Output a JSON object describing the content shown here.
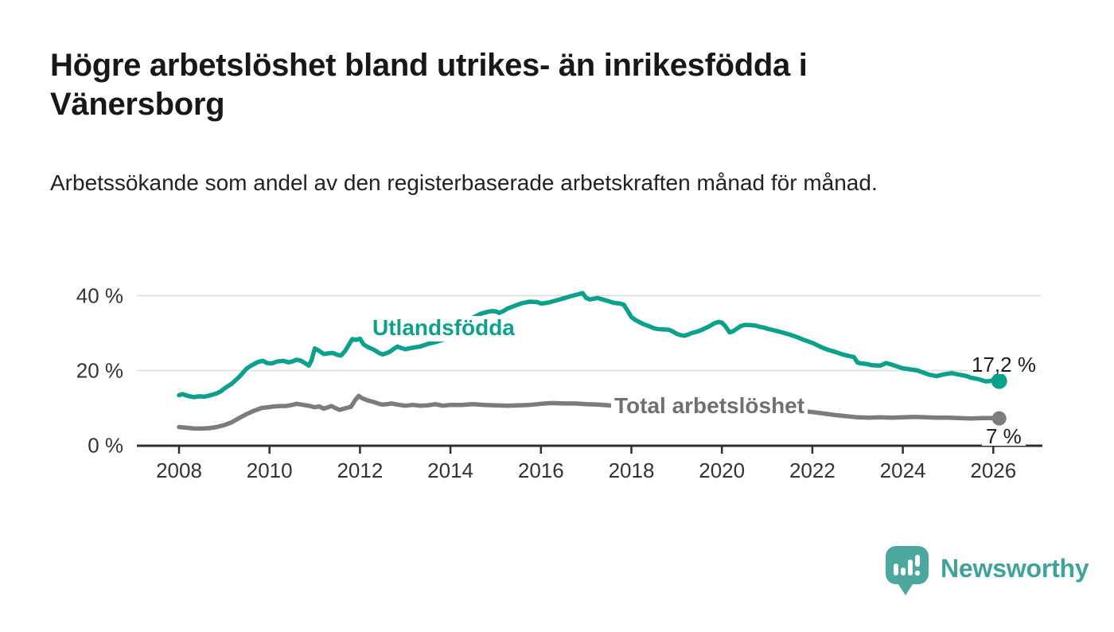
{
  "chart_data": {
    "type": "line",
    "title": "Högre arbetslöshet bland utrikes- än inrikesfödda i Vänersborg",
    "subtitle": "Arbetssökande som andel av den registerbaserade arbetskraften månad för månad.",
    "unit": "%",
    "grid": "horizontal-only",
    "legend_position": "inline-labels-on-chart",
    "x_axis": {
      "ticks": [
        2008,
        2010,
        2012,
        2014,
        2016,
        2018,
        2020,
        2022,
        2024,
        2026
      ],
      "tick_labels": [
        "2008",
        "2010",
        "2012",
        "2014",
        "2016",
        "2018",
        "2020",
        "2022",
        "2024",
        "2026"
      ],
      "range_years": [
        2007.07,
        2027.05
      ]
    },
    "y_axis": {
      "ticks": [
        0,
        20,
        40
      ],
      "tick_labels": [
        "0 %",
        "20 %",
        "40 %"
      ],
      "range": [
        0,
        42
      ]
    },
    "series": [
      {
        "name": "Utlandsfödda",
        "color": "#0DA18D",
        "end_label": "17,2 %",
        "end_value": 17.2,
        "points": [
          [
            2008.0,
            13.4
          ],
          [
            2008.08,
            13.7
          ],
          [
            2008.2,
            13.2
          ],
          [
            2008.33,
            12.9
          ],
          [
            2008.45,
            13.1
          ],
          [
            2008.55,
            13.0
          ],
          [
            2008.67,
            13.3
          ],
          [
            2008.83,
            13.9
          ],
          [
            2008.92,
            14.4
          ],
          [
            2009.0,
            15.2
          ],
          [
            2009.17,
            16.5
          ],
          [
            2009.33,
            18.3
          ],
          [
            2009.42,
            19.5
          ],
          [
            2009.5,
            20.6
          ],
          [
            2009.58,
            21.2
          ],
          [
            2009.67,
            21.8
          ],
          [
            2009.75,
            22.3
          ],
          [
            2009.85,
            22.6
          ],
          [
            2009.95,
            22.0
          ],
          [
            2010.05,
            21.9
          ],
          [
            2010.17,
            22.4
          ],
          [
            2010.3,
            22.6
          ],
          [
            2010.42,
            22.2
          ],
          [
            2010.5,
            22.4
          ],
          [
            2010.6,
            22.9
          ],
          [
            2010.7,
            22.6
          ],
          [
            2010.78,
            22.0
          ],
          [
            2010.87,
            21.3
          ],
          [
            2010.93,
            22.8
          ],
          [
            2011.0,
            25.9
          ],
          [
            2011.08,
            25.4
          ],
          [
            2011.2,
            24.4
          ],
          [
            2011.3,
            24.6
          ],
          [
            2011.4,
            24.7
          ],
          [
            2011.5,
            24.2
          ],
          [
            2011.58,
            24.0
          ],
          [
            2011.67,
            25.2
          ],
          [
            2011.75,
            26.8
          ],
          [
            2011.83,
            28.4
          ],
          [
            2011.92,
            28.2
          ],
          [
            2012.0,
            28.5
          ],
          [
            2012.08,
            27.0
          ],
          [
            2012.17,
            26.3
          ],
          [
            2012.3,
            25.6
          ],
          [
            2012.42,
            24.7
          ],
          [
            2012.5,
            24.3
          ],
          [
            2012.6,
            24.7
          ],
          [
            2012.67,
            25.1
          ],
          [
            2012.75,
            25.8
          ],
          [
            2012.83,
            26.4
          ],
          [
            2012.92,
            26.0
          ],
          [
            2013.0,
            25.7
          ],
          [
            2013.08,
            25.9
          ],
          [
            2013.17,
            26.1
          ],
          [
            2013.33,
            26.4
          ],
          [
            2013.5,
            27.1
          ],
          [
            2013.67,
            27.6
          ],
          [
            2013.83,
            28.2
          ],
          [
            2014.0,
            28.7
          ],
          [
            2014.17,
            30.6
          ],
          [
            2014.33,
            32.6
          ],
          [
            2014.5,
            34.1
          ],
          [
            2014.67,
            35.2
          ],
          [
            2014.83,
            35.7
          ],
          [
            2014.92,
            35.9
          ],
          [
            2015.0,
            35.8
          ],
          [
            2015.08,
            35.4
          ],
          [
            2015.17,
            35.9
          ],
          [
            2015.25,
            36.5
          ],
          [
            2015.42,
            37.3
          ],
          [
            2015.58,
            38.0
          ],
          [
            2015.75,
            38.4
          ],
          [
            2015.92,
            38.3
          ],
          [
            2016.0,
            37.9
          ],
          [
            2016.08,
            38.0
          ],
          [
            2016.17,
            38.2
          ],
          [
            2016.33,
            38.7
          ],
          [
            2016.5,
            39.3
          ],
          [
            2016.67,
            39.9
          ],
          [
            2016.83,
            40.4
          ],
          [
            2016.92,
            40.7
          ],
          [
            2017.0,
            39.4
          ],
          [
            2017.08,
            39.0
          ],
          [
            2017.17,
            39.2
          ],
          [
            2017.25,
            39.4
          ],
          [
            2017.33,
            39.1
          ],
          [
            2017.42,
            38.8
          ],
          [
            2017.5,
            38.5
          ],
          [
            2017.58,
            38.2
          ],
          [
            2017.67,
            38.0
          ],
          [
            2017.75,
            37.9
          ],
          [
            2017.83,
            37.6
          ],
          [
            2017.92,
            35.9
          ],
          [
            2018.0,
            34.3
          ],
          [
            2018.08,
            33.6
          ],
          [
            2018.17,
            33.0
          ],
          [
            2018.25,
            32.5
          ],
          [
            2018.33,
            32.1
          ],
          [
            2018.42,
            31.7
          ],
          [
            2018.5,
            31.3
          ],
          [
            2018.58,
            31.1
          ],
          [
            2018.67,
            31.0
          ],
          [
            2018.83,
            30.9
          ],
          [
            2018.92,
            30.4
          ],
          [
            2019.0,
            29.8
          ],
          [
            2019.08,
            29.5
          ],
          [
            2019.17,
            29.3
          ],
          [
            2019.25,
            29.6
          ],
          [
            2019.33,
            30.0
          ],
          [
            2019.42,
            30.3
          ],
          [
            2019.5,
            30.6
          ],
          [
            2019.58,
            31.0
          ],
          [
            2019.67,
            31.5
          ],
          [
            2019.75,
            32.0
          ],
          [
            2019.83,
            32.6
          ],
          [
            2019.92,
            33.0
          ],
          [
            2020.0,
            32.8
          ],
          [
            2020.08,
            31.8
          ],
          [
            2020.17,
            30.2
          ],
          [
            2020.25,
            30.5
          ],
          [
            2020.33,
            31.2
          ],
          [
            2020.42,
            31.9
          ],
          [
            2020.5,
            32.2
          ],
          [
            2020.58,
            32.2
          ],
          [
            2020.67,
            32.1
          ],
          [
            2020.75,
            32.0
          ],
          [
            2020.83,
            31.7
          ],
          [
            2020.92,
            31.5
          ],
          [
            2021.0,
            31.2
          ],
          [
            2021.17,
            30.7
          ],
          [
            2021.33,
            30.2
          ],
          [
            2021.5,
            29.6
          ],
          [
            2021.67,
            28.9
          ],
          [
            2021.83,
            28.1
          ],
          [
            2022.0,
            27.4
          ],
          [
            2022.17,
            26.4
          ],
          [
            2022.33,
            25.6
          ],
          [
            2022.5,
            25.0
          ],
          [
            2022.67,
            24.3
          ],
          [
            2022.83,
            23.8
          ],
          [
            2022.92,
            23.6
          ],
          [
            2023.0,
            22.1
          ],
          [
            2023.08,
            21.9
          ],
          [
            2023.17,
            21.8
          ],
          [
            2023.33,
            21.4
          ],
          [
            2023.5,
            21.3
          ],
          [
            2023.63,
            22.0
          ],
          [
            2023.75,
            21.6
          ],
          [
            2023.92,
            20.9
          ],
          [
            2024.0,
            20.6
          ],
          [
            2024.17,
            20.3
          ],
          [
            2024.33,
            20.0
          ],
          [
            2024.42,
            19.6
          ],
          [
            2024.58,
            18.9
          ],
          [
            2024.75,
            18.5
          ],
          [
            2024.92,
            19.0
          ],
          [
            2025.08,
            19.3
          ],
          [
            2025.25,
            18.9
          ],
          [
            2025.42,
            18.5
          ],
          [
            2025.5,
            18.1
          ],
          [
            2025.67,
            17.7
          ],
          [
            2025.75,
            17.4
          ],
          [
            2025.83,
            17.1
          ],
          [
            2025.92,
            17.2
          ],
          [
            2026.0,
            17.4
          ],
          [
            2026.13,
            17.2
          ]
        ]
      },
      {
        "name": "Total arbetslöshet",
        "color": "#7C7C7C",
        "end_label": "7 %",
        "end_value": 7,
        "points": [
          [
            2008.0,
            4.9
          ],
          [
            2008.17,
            4.7
          ],
          [
            2008.33,
            4.5
          ],
          [
            2008.5,
            4.5
          ],
          [
            2008.67,
            4.6
          ],
          [
            2008.83,
            4.9
          ],
          [
            2009.0,
            5.4
          ],
          [
            2009.17,
            6.2
          ],
          [
            2009.33,
            7.3
          ],
          [
            2009.5,
            8.4
          ],
          [
            2009.67,
            9.3
          ],
          [
            2009.83,
            10.0
          ],
          [
            2009.97,
            10.2
          ],
          [
            2010.1,
            10.4
          ],
          [
            2010.25,
            10.5
          ],
          [
            2010.37,
            10.5
          ],
          [
            2010.5,
            10.8
          ],
          [
            2010.6,
            11.1
          ],
          [
            2010.75,
            10.8
          ],
          [
            2010.9,
            10.5
          ],
          [
            2011.0,
            10.2
          ],
          [
            2011.1,
            10.4
          ],
          [
            2011.2,
            9.8
          ],
          [
            2011.3,
            10.2
          ],
          [
            2011.37,
            10.5
          ],
          [
            2011.45,
            10.0
          ],
          [
            2011.55,
            9.5
          ],
          [
            2011.65,
            9.8
          ],
          [
            2011.8,
            10.3
          ],
          [
            2011.9,
            12.2
          ],
          [
            2011.97,
            13.2
          ],
          [
            2012.05,
            12.6
          ],
          [
            2012.17,
            12.0
          ],
          [
            2012.3,
            11.6
          ],
          [
            2012.42,
            11.1
          ],
          [
            2012.5,
            10.9
          ],
          [
            2012.6,
            11.0
          ],
          [
            2012.7,
            11.2
          ],
          [
            2012.83,
            10.9
          ],
          [
            2013.0,
            10.6
          ],
          [
            2013.17,
            10.8
          ],
          [
            2013.33,
            10.6
          ],
          [
            2013.5,
            10.7
          ],
          [
            2013.67,
            11.0
          ],
          [
            2013.83,
            10.6
          ],
          [
            2014.0,
            10.8
          ],
          [
            2014.25,
            10.8
          ],
          [
            2014.5,
            11.0
          ],
          [
            2014.75,
            10.8
          ],
          [
            2015.0,
            10.7
          ],
          [
            2015.25,
            10.6
          ],
          [
            2015.5,
            10.7
          ],
          [
            2015.75,
            10.8
          ],
          [
            2016.0,
            11.1
          ],
          [
            2016.25,
            11.3
          ],
          [
            2016.5,
            11.2
          ],
          [
            2016.75,
            11.2
          ],
          [
            2017.0,
            11.0
          ],
          [
            2017.25,
            10.9
          ],
          [
            2017.5,
            10.7
          ],
          [
            2017.75,
            10.4
          ],
          [
            2018.0,
            10.3
          ],
          [
            2018.25,
            10.2
          ],
          [
            2018.5,
            10.0
          ],
          [
            2018.75,
            9.9
          ],
          [
            2019.0,
            9.8
          ],
          [
            2019.25,
            9.7
          ],
          [
            2019.5,
            9.8
          ],
          [
            2019.75,
            10.0
          ],
          [
            2020.0,
            10.2
          ],
          [
            2020.25,
            10.6
          ],
          [
            2020.5,
            10.8
          ],
          [
            2020.75,
            10.6
          ],
          [
            2021.0,
            10.3
          ],
          [
            2021.25,
            10.0
          ],
          [
            2021.5,
            9.6
          ],
          [
            2021.75,
            9.2
          ],
          [
            2022.0,
            8.9
          ],
          [
            2022.25,
            8.5
          ],
          [
            2022.5,
            8.1
          ],
          [
            2022.67,
            7.9
          ],
          [
            2022.83,
            7.7
          ],
          [
            2023.0,
            7.5
          ],
          [
            2023.25,
            7.4
          ],
          [
            2023.5,
            7.5
          ],
          [
            2023.75,
            7.4
          ],
          [
            2024.0,
            7.5
          ],
          [
            2024.25,
            7.6
          ],
          [
            2024.5,
            7.5
          ],
          [
            2024.75,
            7.4
          ],
          [
            2025.0,
            7.4
          ],
          [
            2025.25,
            7.3
          ],
          [
            2025.5,
            7.2
          ],
          [
            2025.75,
            7.3
          ],
          [
            2026.0,
            7.3
          ],
          [
            2026.13,
            7.2
          ]
        ]
      }
    ]
  },
  "footer": {
    "brand": "Newsworthy",
    "icon": "speech-bubble-bar-chart",
    "brand_color": "#3FA39A",
    "icon_color": "#4CA89F"
  },
  "colors": {
    "gridline": "#DCDCDC",
    "axis": "#2E2E2E",
    "tick_label": "#333333",
    "annotation_text": "#1C1C1C"
  }
}
